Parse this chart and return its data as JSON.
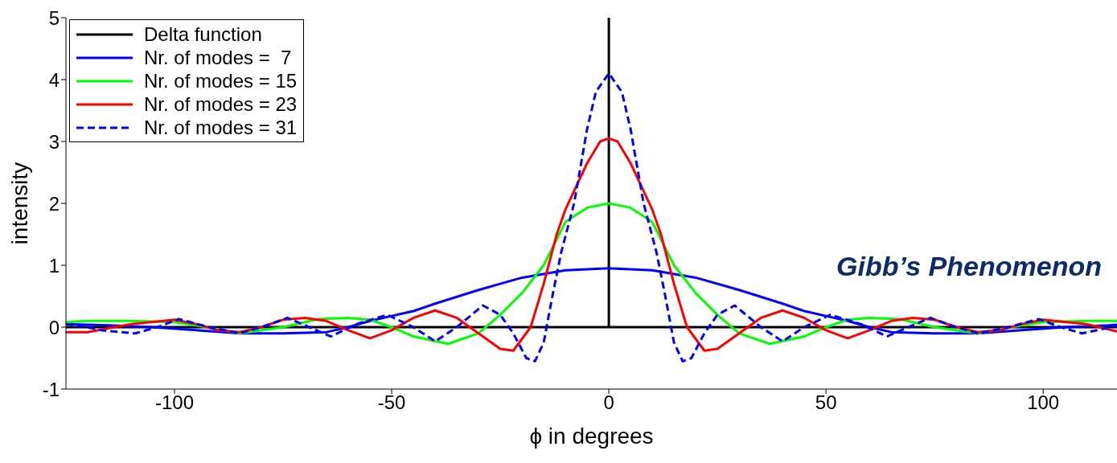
{
  "chart_data": {
    "type": "line",
    "xlabel": "ϕ in degrees",
    "ylabel": "intensity",
    "xlim": [
      -125,
      117
    ],
    "ylim": [
      -1,
      5
    ],
    "xticks": [
      -100,
      -50,
      0,
      50,
      100
    ],
    "yticks": [
      -1,
      0,
      1,
      2,
      3,
      4,
      5
    ],
    "legend": "top left",
    "annotations": [
      "Gibb’s Phenomenon"
    ],
    "series": [
      {
        "name": "Delta function",
        "color": "#000000",
        "x": [
          -125,
          0,
          0,
          0,
          117
        ],
        "values": [
          0,
          0,
          5,
          0,
          0
        ]
      },
      {
        "name": "Nr. of modes =  7",
        "color": "#0000ff",
        "x": [
          -125,
          -115,
          -105,
          -95,
          -85,
          -75,
          -65,
          -60,
          -55,
          -50,
          -45,
          -40,
          -30,
          -20,
          -10,
          0,
          10,
          20,
          30,
          40,
          45,
          50,
          55,
          60,
          65,
          75,
          85,
          95,
          105,
          115,
          117
        ],
        "values": [
          0.05,
          0.03,
          0.0,
          -0.05,
          -0.1,
          -0.1,
          -0.08,
          0.0,
          0.1,
          0.18,
          0.26,
          0.38,
          0.6,
          0.8,
          0.92,
          0.95,
          0.92,
          0.8,
          0.6,
          0.38,
          0.26,
          0.18,
          0.1,
          0.0,
          -0.08,
          -0.1,
          -0.1,
          -0.05,
          0.0,
          0.03,
          0.04
        ]
      },
      {
        "name": "Nr. of modes = 15",
        "color": "#00ff00",
        "x": [
          -125,
          -120,
          -110,
          -100,
          -95,
          -85,
          -75,
          -67,
          -60,
          -55,
          -50,
          -45,
          -37,
          -30,
          -25,
          -20,
          -15,
          -10,
          -5,
          0,
          5,
          10,
          15,
          20,
          25,
          30,
          37,
          45,
          50,
          55,
          60,
          67,
          75,
          85,
          95,
          100,
          110,
          117
        ],
        "values": [
          0.08,
          0.1,
          0.1,
          0.08,
          0.03,
          -0.1,
          0.0,
          0.13,
          0.15,
          0.12,
          0.0,
          -0.15,
          -0.27,
          -0.1,
          0.2,
          0.55,
          1.0,
          1.7,
          1.93,
          2.0,
          1.93,
          1.7,
          1.0,
          0.55,
          0.2,
          -0.1,
          -0.27,
          -0.15,
          0.0,
          0.12,
          0.15,
          0.13,
          0.0,
          -0.1,
          0.03,
          0.08,
          0.1,
          0.1
        ]
      },
      {
        "name": "Nr. of modes = 23",
        "color": "#ff0000",
        "x": [
          -125,
          -120,
          -110,
          -100,
          -95,
          -90,
          -85,
          -80,
          -75,
          -70,
          -65,
          -60,
          -55,
          -50,
          -45,
          -40,
          -35,
          -30,
          -25,
          -22,
          -18,
          -15,
          -12,
          -10,
          -7,
          -5,
          -2,
          0,
          2,
          5,
          7,
          10,
          12,
          15,
          18,
          22,
          25,
          30,
          35,
          40,
          45,
          50,
          55,
          60,
          65,
          70,
          75,
          80,
          85,
          90,
          95,
          100,
          110,
          117
        ],
        "values": [
          -0.08,
          -0.08,
          0.05,
          0.12,
          0.05,
          -0.05,
          -0.08,
          0.0,
          0.12,
          0.15,
          0.1,
          -0.05,
          -0.18,
          -0.05,
          0.15,
          0.27,
          0.15,
          -0.1,
          -0.35,
          -0.38,
          0.0,
          0.7,
          1.5,
          1.9,
          2.35,
          2.65,
          3.0,
          3.05,
          3.0,
          2.65,
          2.35,
          1.9,
          1.5,
          0.7,
          0.0,
          -0.38,
          -0.35,
          -0.1,
          0.15,
          0.27,
          0.15,
          -0.05,
          -0.18,
          -0.05,
          0.1,
          0.15,
          0.12,
          0.0,
          -0.08,
          -0.05,
          0.05,
          0.12,
          0.05,
          -0.07
        ]
      },
      {
        "name": "Nr. of modes = 31",
        "color": "#0000ff",
        "line_style": "dashed",
        "x": [
          -125,
          -120,
          -117,
          -109,
          -104,
          -99,
          -92,
          -85,
          -80,
          -74,
          -69,
          -64,
          -58,
          -51,
          -45,
          -40,
          -35,
          -29,
          -25,
          -22,
          -19,
          -17,
          -15,
          -13,
          -11,
          -8,
          -5,
          -3,
          0,
          3,
          5,
          8,
          11,
          13,
          15,
          17,
          19,
          22,
          25,
          29,
          35,
          40,
          45,
          51,
          58,
          64,
          69,
          74,
          80,
          85,
          92,
          99,
          104,
          109,
          117
        ],
        "values": [
          0.05,
          0.0,
          -0.05,
          -0.1,
          0.0,
          0.13,
          0.0,
          -0.1,
          0.0,
          0.15,
          0.0,
          -0.15,
          0.05,
          0.2,
          0.0,
          -0.23,
          0.0,
          0.35,
          0.2,
          -0.1,
          -0.5,
          -0.55,
          -0.25,
          0.5,
          1.2,
          2.0,
          3.2,
          3.8,
          4.1,
          3.8,
          3.2,
          2.0,
          1.2,
          0.5,
          -0.25,
          -0.55,
          -0.5,
          -0.1,
          0.2,
          0.35,
          0.0,
          -0.23,
          0.0,
          0.2,
          0.05,
          -0.15,
          0.0,
          0.15,
          0.0,
          -0.1,
          0.0,
          0.13,
          0.0,
          -0.1,
          0.02
        ]
      }
    ]
  }
}
